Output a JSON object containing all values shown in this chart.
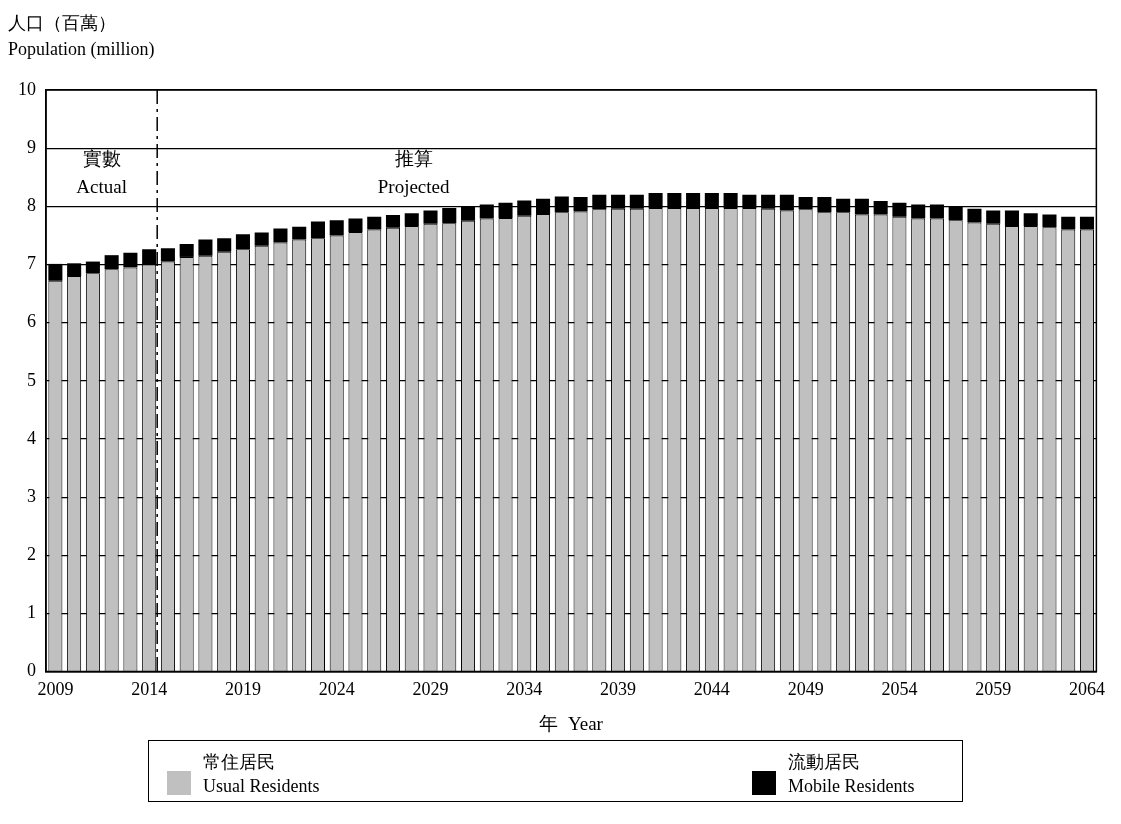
{
  "chart_data": {
    "type": "bar",
    "stacked": true,
    "ylabel": "人口（百萬）\nPopulation (million)",
    "xlabel": "年  Year",
    "categories": [
      "2009",
      null,
      null,
      null,
      null,
      "2014",
      null,
      null,
      null,
      null,
      "2019",
      null,
      null,
      null,
      null,
      "2024",
      null,
      null,
      null,
      null,
      "2029",
      null,
      null,
      null,
      null,
      "2034",
      null,
      null,
      null,
      null,
      "2039",
      null,
      null,
      null,
      null,
      "2044",
      null,
      null,
      null,
      null,
      "2049",
      null,
      null,
      null,
      null,
      "2054",
      null,
      null,
      null,
      null,
      "2059",
      null,
      null,
      null,
      null,
      "2064"
    ],
    "series": [
      {
        "name": "常住居民\nUsual Residents",
        "color": "#c0c0c0",
        "values": [
          6.72,
          6.8,
          6.85,
          6.92,
          6.95,
          7.0,
          7.05,
          7.13,
          7.15,
          7.22,
          7.26,
          7.32,
          7.38,
          7.43,
          7.45,
          7.5,
          7.56,
          7.6,
          7.63,
          7.66,
          7.7,
          7.71,
          7.75,
          7.79,
          7.8,
          7.84,
          7.87,
          7.9,
          7.91,
          7.95,
          7.96,
          7.96,
          7.97,
          7.97,
          7.97,
          7.97,
          7.97,
          7.97,
          7.96,
          7.93,
          7.95,
          7.9,
          7.9,
          7.86,
          7.86,
          7.82,
          7.79,
          7.79,
          7.76,
          7.72,
          7.7,
          7.66,
          7.66,
          7.64,
          7.6,
          7.6
        ]
      },
      {
        "name": "流動居民\nMobile Residents",
        "color": "#000000",
        "values": [
          0.29,
          0.22,
          0.2,
          0.24,
          0.25,
          0.26,
          0.23,
          0.22,
          0.28,
          0.23,
          0.26,
          0.23,
          0.24,
          0.22,
          0.29,
          0.26,
          0.23,
          0.22,
          0.22,
          0.22,
          0.23,
          0.26,
          0.24,
          0.24,
          0.26,
          0.26,
          0.26,
          0.27,
          0.25,
          0.25,
          0.24,
          0.24,
          0.26,
          0.26,
          0.26,
          0.26,
          0.26,
          0.23,
          0.24,
          0.27,
          0.21,
          0.26,
          0.23,
          0.27,
          0.23,
          0.24,
          0.24,
          0.24,
          0.23,
          0.24,
          0.23,
          0.27,
          0.22,
          0.22,
          0.22,
          0.22
        ]
      }
    ],
    "ylim": [
      0,
      10
    ],
    "yticks": [
      0,
      1,
      2,
      3,
      4,
      5,
      6,
      7,
      8,
      9,
      10
    ],
    "grid": "y",
    "legend": "bottom",
    "ref_lines": [
      {
        "axis": "x",
        "value": "2014",
        "line_style": "dashed",
        "color": "#000000"
      }
    ],
    "annotations": [
      "實數\nActual",
      "推算\nProjected"
    ]
  }
}
